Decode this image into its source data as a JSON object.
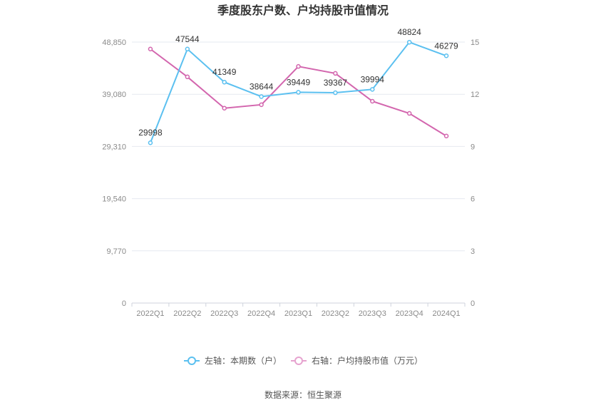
{
  "chart_data": {
    "type": "line",
    "title": "季度股东户数、户均持股市值情况",
    "categories": [
      "2022Q1",
      "2022Q2",
      "2022Q3",
      "2022Q4",
      "2023Q1",
      "2023Q2",
      "2023Q3",
      "2023Q4",
      "2024Q1"
    ],
    "left_axis": {
      "ticks": [
        "0",
        "9,770",
        "19,540",
        "29,310",
        "39,080",
        "48,850"
      ],
      "ylim": [
        0,
        48850
      ]
    },
    "right_axis": {
      "ticks": [
        "0",
        "3",
        "6",
        "9",
        "12",
        "15"
      ],
      "ylim": [
        0,
        15
      ]
    },
    "grid": true,
    "legend_position": "bottom",
    "series": [
      {
        "name": "左轴：本期数（户）",
        "axis": "left",
        "color": "#5bc0f0",
        "values": [
          29998,
          47544,
          41349,
          38644,
          39449,
          39367,
          39994,
          48824,
          46279
        ],
        "labels": [
          "29998",
          "47544",
          "41349",
          "38644",
          "39449",
          "39367",
          "39994",
          "48824",
          "46279"
        ]
      },
      {
        "name": "右轴：户均持股市值（万元）",
        "axis": "right",
        "color": "#d366ae",
        "values": [
          14.6,
          13.0,
          11.2,
          11.4,
          13.6,
          13.2,
          11.6,
          10.9,
          9.6
        ]
      }
    ]
  },
  "source": "数据来源：恒生聚源"
}
